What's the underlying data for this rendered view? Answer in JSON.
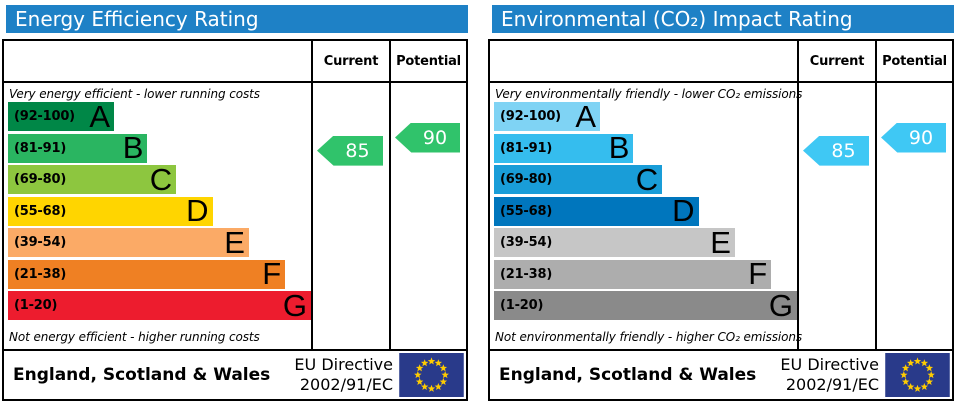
{
  "colors": {
    "header_blue": "#1e81c6",
    "energy_arrow": "#30c36b",
    "co2_arrow": "#3fc8f4",
    "flag_blue": "#293a8a",
    "flag_star": "#ffcc00"
  },
  "chart_data": [
    {
      "type": "bar",
      "title": "Energy Efficiency Rating",
      "orientation": "horizontal",
      "categories": [
        "A (92-100)",
        "B (81-91)",
        "C (69-80)",
        "D (55-68)",
        "E (39-54)",
        "F (21-38)",
        "G (1-20)"
      ],
      "values": [
        35,
        46,
        55.5,
        67.5,
        79.5,
        91.5,
        100
      ],
      "values_note": "decorative bar lengths (% of chart width)",
      "band_colors": [
        "#008747",
        "#2ab561",
        "#8dc63f",
        "#ffd500",
        "#fbaa66",
        "#ef8023",
        "#ed1c2e"
      ],
      "markers": {
        "current": 85,
        "potential": 90
      },
      "scale_range": [
        1,
        100
      ],
      "annotations": [
        "Very energy efficient - lower running costs",
        "Not energy efficient - higher running costs"
      ]
    },
    {
      "type": "bar",
      "title": "Environmental (CO₂) Impact Rating",
      "orientation": "horizontal",
      "categories": [
        "A (92-100)",
        "B (81-91)",
        "C (69-80)",
        "D (55-68)",
        "E (39-54)",
        "F (21-38)",
        "G (1-20)"
      ],
      "values": [
        35,
        46,
        55.5,
        67.5,
        79.5,
        91.5,
        100
      ],
      "values_note": "decorative bar lengths (% of chart width)",
      "band_colors": [
        "#7fd3f4",
        "#35bdee",
        "#199dd8",
        "#0076bd",
        "#c6c6c6",
        "#adadad",
        "#8a8a8a"
      ],
      "markers": {
        "current": 85,
        "potential": 90
      },
      "scale_range": [
        1,
        100
      ],
      "annotations": [
        "Very environmentally friendly - lower CO₂ emissions",
        "Not environmentally friendly - higher CO₂ emissions"
      ]
    }
  ],
  "panels": [
    {
      "id": "energy-efficiency",
      "title": "Energy Efficiency Rating",
      "columns": {
        "current": "Current",
        "potential": "Potential"
      },
      "top_note": "Very energy efficient - lower running costs",
      "bottom_note": "Not energy efficient - higher running costs",
      "bands": [
        {
          "label": "(92-100)",
          "letter": "A",
          "lo": 92,
          "hi": 100,
          "color": "#008747",
          "width_pct": 35
        },
        {
          "label": "(81-91)",
          "letter": "B",
          "lo": 81,
          "hi": 91,
          "color": "#2ab561",
          "width_pct": 46
        },
        {
          "label": "(69-80)",
          "letter": "C",
          "lo": 69,
          "hi": 80,
          "color": "#8dc63f",
          "width_pct": 55.5
        },
        {
          "label": "(55-68)",
          "letter": "D",
          "lo": 55,
          "hi": 68,
          "color": "#ffd500",
          "width_pct": 67.5
        },
        {
          "label": "(39-54)",
          "letter": "E",
          "lo": 39,
          "hi": 54,
          "color": "#fbaa66",
          "width_pct": 79.5
        },
        {
          "label": "(21-38)",
          "letter": "F",
          "lo": 21,
          "hi": 38,
          "color": "#ef8023",
          "width_pct": 91.5
        },
        {
          "label": "(1-20)",
          "letter": "G",
          "lo": 1,
          "hi": 20,
          "color": "#ed1c2e",
          "width_pct": 100
        }
      ],
      "current": {
        "value": 85,
        "label": "85"
      },
      "potential": {
        "value": 90,
        "label": "90"
      },
      "arrow_color": "#30c36b",
      "footer": {
        "region": "England, Scotland & Wales",
        "directive_line1": "EU Directive",
        "directive_line2": "2002/91/EC"
      }
    },
    {
      "id": "co2-impact",
      "title": "Environmental (CO₂) Impact Rating",
      "columns": {
        "current": "Current",
        "potential": "Potential"
      },
      "top_note": "Very environmentally friendly - lower CO₂ emissions",
      "bottom_note": "Not environmentally friendly - higher CO₂ emissions",
      "bands": [
        {
          "label": "(92-100)",
          "letter": "A",
          "lo": 92,
          "hi": 100,
          "color": "#7fd3f4",
          "width_pct": 35
        },
        {
          "label": "(81-91)",
          "letter": "B",
          "lo": 81,
          "hi": 91,
          "color": "#35bdee",
          "width_pct": 46
        },
        {
          "label": "(69-80)",
          "letter": "C",
          "lo": 69,
          "hi": 80,
          "color": "#199dd8",
          "width_pct": 55.5
        },
        {
          "label": "(55-68)",
          "letter": "D",
          "lo": 55,
          "hi": 68,
          "color": "#0076bd",
          "width_pct": 67.5
        },
        {
          "label": "(39-54)",
          "letter": "E",
          "lo": 39,
          "hi": 54,
          "color": "#c6c6c6",
          "width_pct": 79.5
        },
        {
          "label": "(21-38)",
          "letter": "F",
          "lo": 21,
          "hi": 38,
          "color": "#adadad",
          "width_pct": 91.5
        },
        {
          "label": "(1-20)",
          "letter": "G",
          "lo": 1,
          "hi": 20,
          "color": "#8a8a8a",
          "width_pct": 100
        }
      ],
      "current": {
        "value": 85,
        "label": "85"
      },
      "potential": {
        "value": 90,
        "label": "90"
      },
      "arrow_color": "#3fc8f4",
      "footer": {
        "region": "England, Scotland & Wales",
        "directive_line1": "EU Directive",
        "directive_line2": "2002/91/EC"
      }
    }
  ]
}
